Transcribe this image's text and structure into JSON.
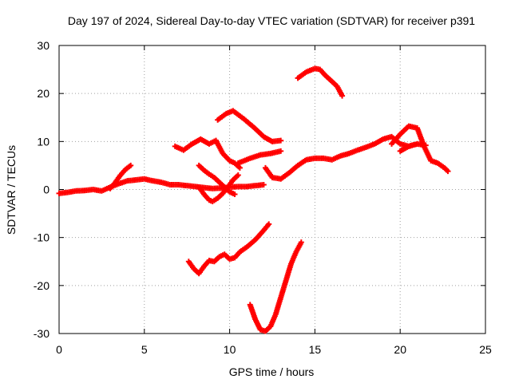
{
  "chart_data": {
    "type": "scatter",
    "title": "Day 197 of 2024, Sidereal Day-to-day VTEC variation (SDTVAR) for receiver p391",
    "xlabel": "GPS time / hours",
    "ylabel": "SDTVAR / TECUs",
    "xlim": [
      0,
      25
    ],
    "ylim": [
      -30,
      30
    ],
    "xticks": [
      "0",
      "5",
      "10",
      "15",
      "20",
      "25"
    ],
    "yticks": [
      "-30",
      "-20",
      "-10",
      "0",
      "10",
      "20",
      "30"
    ],
    "grid": true,
    "marker": "plus",
    "color": "#ff0000",
    "series": [
      {
        "x": [
          0.0,
          0.5,
          1.0,
          1.5,
          2.0,
          2.5,
          3.0,
          3.5,
          4.0,
          4.5,
          5.0,
          5.5,
          6.0,
          6.5,
          7.0,
          7.5,
          8.0,
          8.5,
          9.0,
          9.5,
          10.0,
          10.5,
          11.0,
          11.5,
          12.0
        ],
        "y": [
          -0.8,
          -0.6,
          -0.3,
          -0.2,
          0.0,
          -0.3,
          0.5,
          1.2,
          1.8,
          2.0,
          2.2,
          1.8,
          1.5,
          1.0,
          1.0,
          0.8,
          0.6,
          0.4,
          0.2,
          0.3,
          0.5,
          0.6,
          0.6,
          0.8,
          1.0
        ]
      },
      {
        "x": [
          3.0,
          3.3,
          3.6,
          3.9,
          4.2
        ],
        "y": [
          0.2,
          1.5,
          3.0,
          4.2,
          5.0
        ]
      },
      {
        "x": [
          6.8,
          7.3,
          7.8,
          8.3,
          8.8,
          9.2,
          9.6,
          10.0,
          10.3,
          10.6
        ],
        "y": [
          9.0,
          8.2,
          9.5,
          10.5,
          9.5,
          10.2,
          7.5,
          6.0,
          5.5,
          4.5
        ]
      },
      {
        "x": [
          8.2,
          8.5,
          8.8,
          9.1,
          9.4,
          9.7,
          10.0,
          10.3
        ],
        "y": [
          5.0,
          4.0,
          3.2,
          2.5,
          1.5,
          0.5,
          -0.5,
          -1.0
        ]
      },
      {
        "x": [
          8.2,
          8.5,
          8.8,
          9.0,
          9.3,
          9.6,
          9.9,
          10.2,
          10.5
        ],
        "y": [
          0.5,
          -1.0,
          -2.2,
          -2.5,
          -1.8,
          -0.8,
          0.5,
          2.0,
          3.0
        ]
      },
      {
        "x": [
          9.3,
          9.8,
          10.2,
          10.8,
          11.4,
          12.0,
          12.5,
          13.0
        ],
        "y": [
          14.5,
          15.8,
          16.4,
          14.8,
          13.0,
          11.0,
          10.0,
          10.2
        ]
      },
      {
        "x": [
          10.5,
          11.2,
          11.8,
          12.4,
          13.0
        ],
        "y": [
          5.5,
          6.5,
          7.2,
          7.5,
          8.0
        ]
      },
      {
        "x": [
          12.1,
          12.5,
          13.0,
          13.5,
          14.0,
          14.5,
          15.0,
          15.5,
          16.0,
          16.5,
          17.0,
          17.5,
          18.0,
          18.5,
          19.0,
          19.5,
          20.0,
          20.5,
          21.0,
          21.5
        ],
        "y": [
          4.5,
          2.5,
          2.2,
          3.5,
          5.0,
          6.2,
          6.5,
          6.5,
          6.2,
          7.0,
          7.5,
          8.2,
          8.8,
          9.5,
          10.5,
          11.0,
          9.5,
          9.0,
          9.5,
          9.2
        ]
      },
      {
        "x": [
          19.5,
          20.0,
          20.5,
          21.0,
          21.4,
          21.8,
          22.2,
          22.6,
          22.8
        ],
        "y": [
          9.5,
          11.5,
          13.2,
          12.8,
          9.0,
          6.0,
          5.5,
          4.5,
          3.8
        ]
      },
      {
        "x": [
          20.0,
          20.5,
          21.0
        ],
        "y": [
          8.0,
          9.0,
          9.5
        ]
      },
      {
        "x": [
          14.0,
          14.5,
          15.0,
          15.3,
          15.6,
          16.0,
          16.3,
          16.6
        ],
        "y": [
          23.2,
          24.5,
          25.2,
          25.0,
          23.8,
          22.5,
          21.5,
          19.5
        ]
      },
      {
        "x": [
          7.6,
          7.9,
          8.2,
          8.5,
          8.8,
          9.1,
          9.4,
          9.7,
          10.0,
          10.3,
          10.6,
          11.0,
          11.5,
          12.0,
          12.3
        ],
        "y": [
          -15.0,
          -16.5,
          -17.5,
          -16.0,
          -14.8,
          -15.0,
          -14.0,
          -13.5,
          -14.5,
          -14.2,
          -13.0,
          -12.0,
          -10.5,
          -8.5,
          -7.2
        ]
      },
      {
        "x": [
          11.2,
          11.5,
          11.8,
          12.1,
          12.4,
          12.7,
          13.0,
          13.3,
          13.6,
          13.9,
          14.2
        ],
        "y": [
          -24.0,
          -27.0,
          -29.2,
          -29.5,
          -28.5,
          -26.0,
          -22.5,
          -19.0,
          -15.5,
          -13.0,
          -11.0
        ]
      }
    ]
  }
}
